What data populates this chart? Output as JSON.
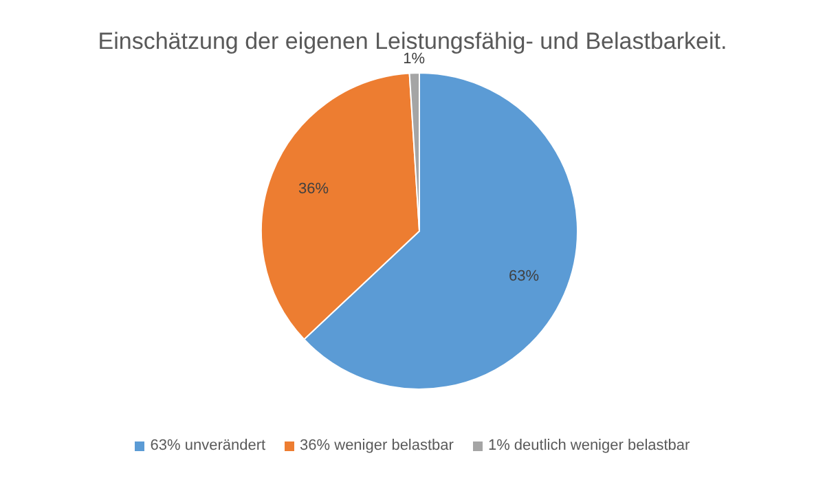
{
  "chart_data": {
    "type": "pie",
    "title": "Einschätzung der eigenen Leistungsfähig- und Belastbarkeit.",
    "categories": [
      "63% unverändert",
      "36% weniger belastbar",
      "1% deutlich weniger belastbar"
    ],
    "values": [
      63,
      36,
      1
    ],
    "colors": [
      "#5b9bd5",
      "#ed7d31",
      "#a5a5a5"
    ],
    "value_labels": [
      "63%",
      "36%",
      "1%"
    ],
    "legend": "bottom"
  }
}
